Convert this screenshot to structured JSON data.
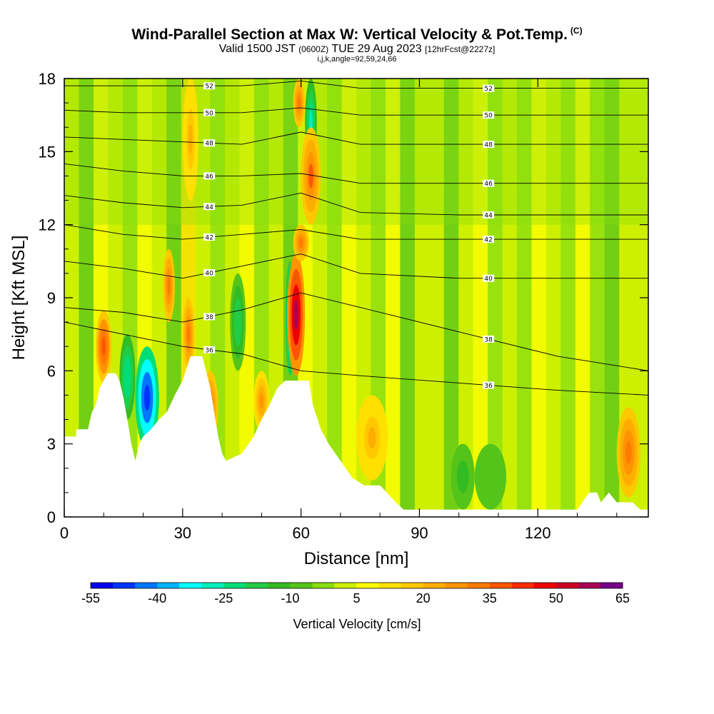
{
  "header": {
    "title": "Wind-Parallel Section at Max W: Vertical Velocity & Pot.Temp.",
    "title_mark": "(C)",
    "line2_a": "Valid 1500 JST",
    "line2_b": "(0600Z)",
    "line2_c": "TUE 29 Aug 2023",
    "line2_d": "[12hrFcst@2227z]",
    "line3": "i,j,k,angle=92,59,24,66"
  },
  "chart_data": {
    "type": "heatmap",
    "xlabel": "Distance [nm]",
    "ylabel": "Height [Kft MSL]",
    "xlim": [
      0,
      148
    ],
    "ylim": [
      0,
      18
    ],
    "x_ticks": [
      0,
      30,
      60,
      90,
      120
    ],
    "y_ticks": [
      0,
      3,
      6,
      9,
      12,
      15,
      18
    ],
    "colorbar": {
      "label": "Vertical Velocity [cm/s]",
      "tick_labels": [
        "-55",
        "-40",
        "-25",
        "-10",
        "5",
        "20",
        "35",
        "50",
        "65"
      ],
      "bins": [
        -55,
        -50,
        -45,
        -40,
        -35,
        -30,
        -25,
        -20,
        -15,
        -10,
        -5,
        0,
        5,
        10,
        15,
        20,
        25,
        30,
        35,
        40,
        45,
        50,
        55,
        60,
        65
      ],
      "colors": [
        "#0000ee",
        "#0033ff",
        "#0077ff",
        "#00b4ff",
        "#00ffff",
        "#00eebb",
        "#00dd77",
        "#22cc44",
        "#33bb22",
        "#55c41a",
        "#88dd11",
        "#ccf000",
        "#ffff00",
        "#ffe000",
        "#ffc800",
        "#ffae00",
        "#ff9400",
        "#ff7a00",
        "#ff5500",
        "#ff2a00",
        "#ee0000",
        "#cc0022",
        "#aa0055",
        "#770088"
      ]
    },
    "terrain": [
      [
        0,
        3.3
      ],
      [
        3,
        3.3
      ],
      [
        3,
        3.6
      ],
      [
        6,
        3.6
      ],
      [
        7,
        4.3
      ],
      [
        8,
        4.6
      ],
      [
        9,
        5.3
      ],
      [
        10,
        5.6
      ],
      [
        11,
        5.9
      ],
      [
        13,
        5.9
      ],
      [
        14,
        5.6
      ],
      [
        15,
        4.9
      ],
      [
        16,
        4.0
      ],
      [
        17,
        3.0
      ],
      [
        18,
        2.3
      ],
      [
        19,
        3.0
      ],
      [
        20,
        3.3
      ],
      [
        22,
        3.6
      ],
      [
        24,
        4.0
      ],
      [
        26,
        4.3
      ],
      [
        28,
        5.0
      ],
      [
        30,
        5.6
      ],
      [
        32,
        6.6
      ],
      [
        35,
        6.6
      ],
      [
        37,
        5.3
      ],
      [
        38,
        4.3
      ],
      [
        39,
        3.3
      ],
      [
        40,
        2.6
      ],
      [
        41,
        2.3
      ],
      [
        45,
        2.6
      ],
      [
        48,
        3.3
      ],
      [
        50,
        4.0
      ],
      [
        52,
        4.6
      ],
      [
        54,
        5.3
      ],
      [
        56,
        5.6
      ],
      [
        62,
        5.6
      ],
      [
        63,
        4.6
      ],
      [
        65,
        3.6
      ],
      [
        67,
        3.0
      ],
      [
        70,
        2.3
      ],
      [
        73,
        1.6
      ],
      [
        76,
        1.3
      ],
      [
        80,
        1.3
      ],
      [
        84,
        0.6
      ],
      [
        86,
        0.3
      ],
      [
        130,
        0.3
      ],
      [
        133,
        1.0
      ],
      [
        135,
        1.0
      ],
      [
        136,
        0.6
      ],
      [
        138,
        1.0
      ],
      [
        140,
        0.6
      ],
      [
        144,
        0.6
      ],
      [
        146,
        0.3
      ],
      [
        148,
        0.3
      ]
    ],
    "velocity_cells": [
      {
        "x": [
          18,
          24
        ],
        "y": [
          2.8,
          7.0
        ],
        "value": -48
      },
      {
        "x": [
          14,
          18
        ],
        "y": [
          4.0,
          7.5
        ],
        "value": -25
      },
      {
        "x": [
          56,
          58.5
        ],
        "y": [
          5.8,
          10.5
        ],
        "value": -32
      },
      {
        "x": [
          61,
          64
        ],
        "y": [
          14.5,
          18.0
        ],
        "value": -28
      },
      {
        "x": [
          42,
          46
        ],
        "y": [
          6.0,
          10.0
        ],
        "value": -18
      },
      {
        "x": [
          56.5,
          61
        ],
        "y": [
          5.8,
          10.8
        ],
        "value": 58
      },
      {
        "x": [
          58,
          62
        ],
        "y": [
          10.5,
          12.0
        ],
        "value": 30
      },
      {
        "x": [
          60,
          65
        ],
        "y": [
          12.0,
          16.0
        ],
        "value": 35
      },
      {
        "x": [
          58,
          61
        ],
        "y": [
          16.0,
          18.0
        ],
        "value": 30
      },
      {
        "x": [
          8,
          12
        ],
        "y": [
          5.5,
          8.5
        ],
        "value": 38
      },
      {
        "x": [
          25,
          28
        ],
        "y": [
          8.0,
          11.0
        ],
        "value": 33
      },
      {
        "x": [
          30,
          33
        ],
        "y": [
          6.0,
          9.0
        ],
        "value": 30
      },
      {
        "x": [
          30,
          34
        ],
        "y": [
          13.0,
          18.0
        ],
        "value": 22
      },
      {
        "x": [
          35,
          39
        ],
        "y": [
          3.0,
          6.0
        ],
        "value": 30
      },
      {
        "x": [
          48,
          52
        ],
        "y": [
          3.5,
          6.0
        ],
        "value": 28
      },
      {
        "x": [
          74,
          82
        ],
        "y": [
          1.5,
          5.0
        ],
        "value": 20
      },
      {
        "x": [
          140,
          146
        ],
        "y": [
          0.8,
          4.5
        ],
        "value": 30
      },
      {
        "x": [
          98,
          104
        ],
        "y": [
          0.3,
          3.0
        ],
        "value": -12
      },
      {
        "x": [
          104,
          112
        ],
        "y": [
          0.3,
          3.0
        ],
        "value": -10
      }
    ],
    "theta_contours": [
      {
        "label": "36",
        "y": [
          8.0,
          7.5,
          7.0,
          6.7,
          6.0,
          5.8,
          5.5,
          5.2,
          5.0
        ]
      },
      {
        "label": "38",
        "y": [
          8.6,
          8.4,
          8.0,
          8.5,
          9.2,
          8.6,
          7.6,
          6.6,
          6.0
        ]
      },
      {
        "label": "40",
        "y": [
          10.5,
          10.2,
          9.8,
          10.3,
          10.8,
          10.0,
          9.8,
          9.8,
          9.8
        ]
      },
      {
        "label": "42",
        "y": [
          12.0,
          11.6,
          11.4,
          11.6,
          11.8,
          11.4,
          11.4,
          11.4,
          11.4
        ]
      },
      {
        "label": "44",
        "y": [
          13.2,
          12.9,
          12.7,
          12.8,
          13.3,
          12.5,
          12.4,
          12.4,
          12.4
        ]
      },
      {
        "label": "46",
        "y": [
          14.5,
          14.2,
          14.0,
          14.0,
          14.1,
          13.7,
          13.7,
          13.7,
          13.7
        ]
      },
      {
        "label": "48",
        "y": [
          15.6,
          15.5,
          15.4,
          15.3,
          15.8,
          15.3,
          15.3,
          15.3,
          15.3
        ]
      },
      {
        "label": "50",
        "y": [
          16.7,
          16.6,
          16.6,
          16.6,
          16.8,
          16.5,
          16.5,
          16.5,
          16.5
        ]
      },
      {
        "label": "52",
        "y": [
          17.7,
          17.7,
          17.7,
          17.7,
          17.9,
          17.6,
          17.6,
          17.6,
          17.6
        ]
      }
    ],
    "contour_x": [
      0,
      15,
      30,
      45,
      60,
      75,
      100,
      125,
      148
    ]
  }
}
